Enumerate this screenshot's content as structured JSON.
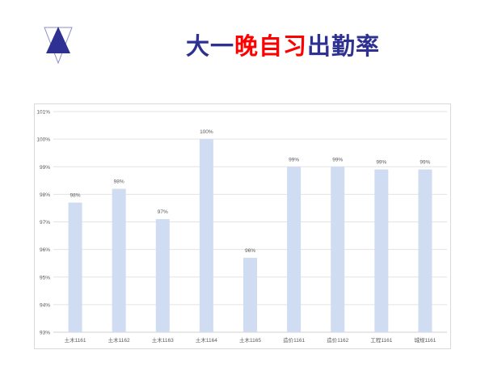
{
  "slide": {
    "title_parts": [
      {
        "text": "大一",
        "color": "#2e3192"
      },
      {
        "text": "晚自习",
        "color": "#ff0000"
      },
      {
        "text": "出勤率",
        "color": "#2e3192"
      }
    ],
    "logo_color": "#2e3192"
  },
  "chart_data": {
    "type": "bar",
    "categories": [
      "土木1161",
      "土木1162",
      "土木1163",
      "土木1164",
      "土木1165",
      "造价1161",
      "造价1162",
      "工程1161",
      "城规1161"
    ],
    "values": [
      97.7,
      98.2,
      97.1,
      100.0,
      95.7,
      99.0,
      99.0,
      98.9,
      98.9
    ],
    "data_labels": [
      "98%",
      "98%",
      "97%",
      "100%",
      "96%",
      "99%",
      "99%",
      "99%",
      "99%"
    ],
    "ylim": [
      93,
      101
    ],
    "yticks": [
      93,
      94,
      95,
      96,
      97,
      98,
      99,
      100,
      101
    ],
    "ytick_labels": [
      "93%",
      "94%",
      "95%",
      "96%",
      "97%",
      "98%",
      "99%",
      "100%",
      "101%"
    ],
    "grid": true,
    "bar_color": "#cfdcf2",
    "title": "",
    "xlabel": "",
    "ylabel": ""
  }
}
